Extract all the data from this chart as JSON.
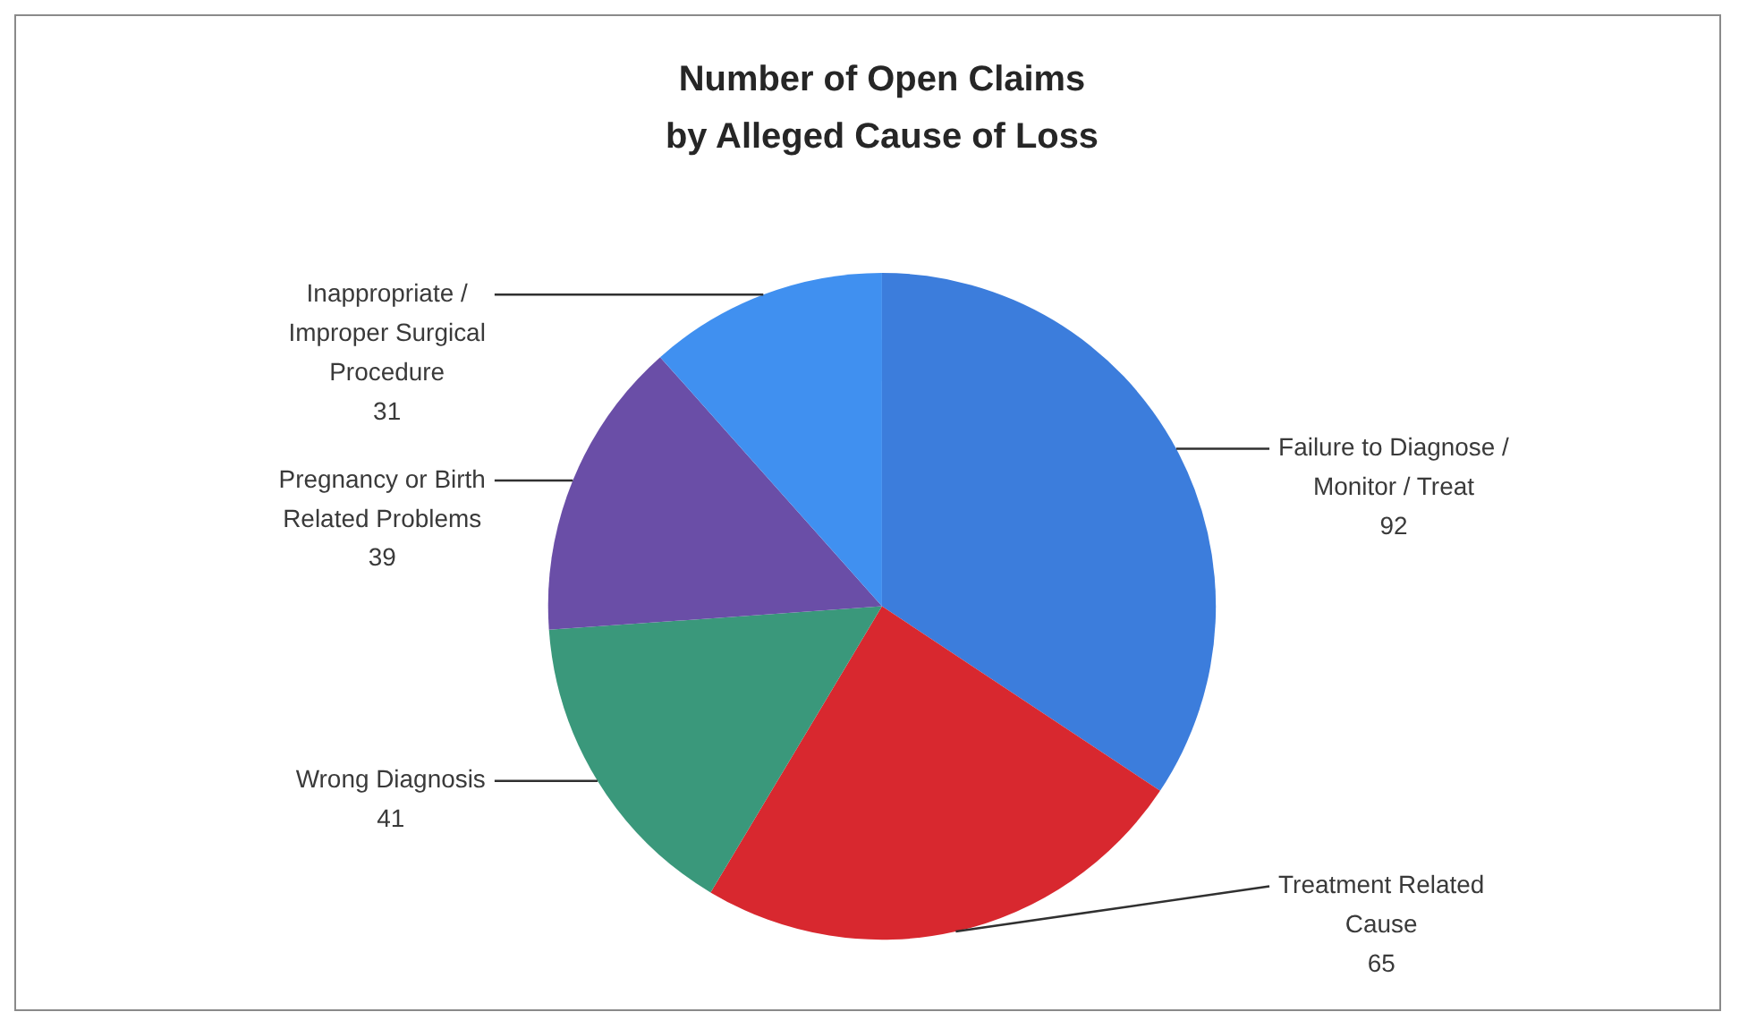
{
  "chart_data": {
    "type": "pie",
    "title": "Number of Open Claims by Alleged Cause of Loss",
    "categories": [
      "Failure to Diagnose / Monitor / Treat",
      "Treatment Related Cause",
      "Wrong Diagnosis",
      "Pregnancy or Birth Related Problems",
      "Inappropriate / Improper Surgical Procedure"
    ],
    "values": [
      92,
      65,
      41,
      39,
      31
    ],
    "colors": [
      "#3c7ddc",
      "#d8282f",
      "#3a987b",
      "#6a4ea7",
      "#4090f0"
    ],
    "data_labels": true
  }
}
